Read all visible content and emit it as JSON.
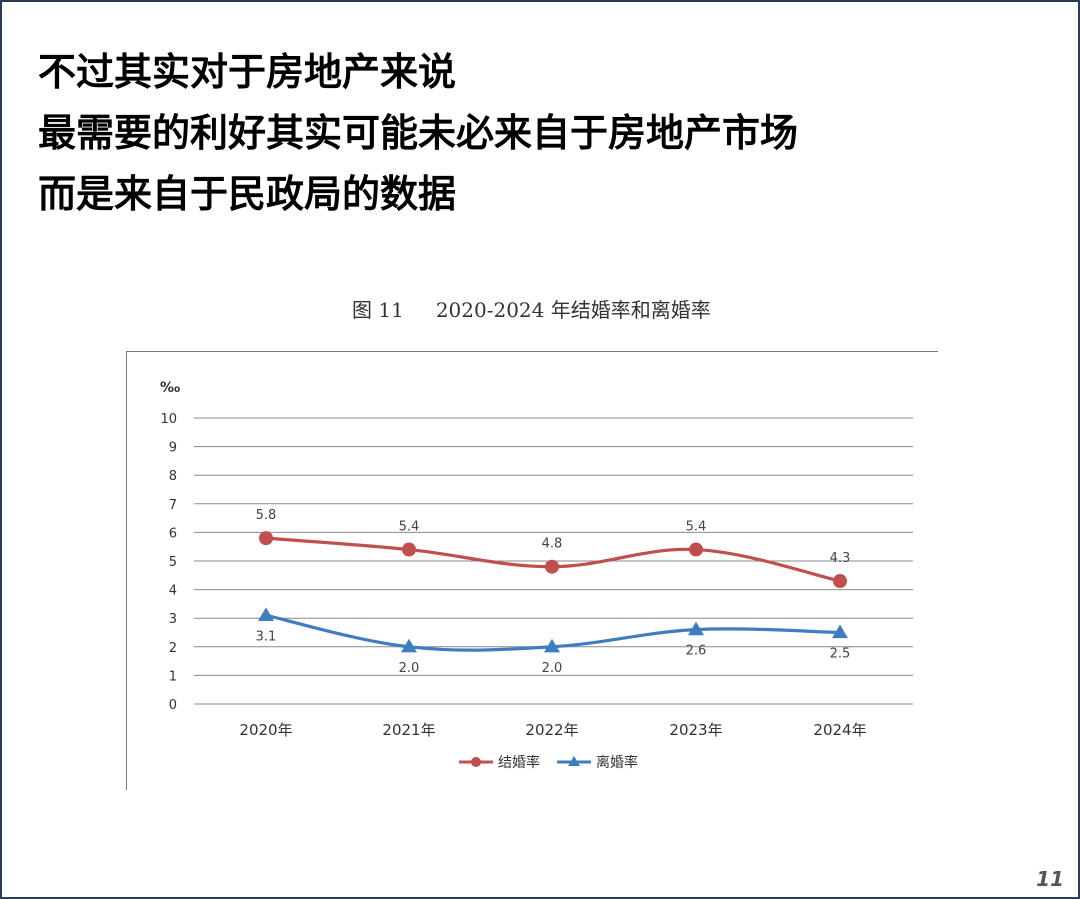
{
  "headline": [
    "不过其实对于房地产来说",
    "最需要的利好其实可能未必来自于房地产市场",
    "而是来自于民政局的数据"
  ],
  "page_number": "11",
  "chart_data": {
    "type": "line",
    "figure_label": "图 11",
    "title": "2020-2024 年结婚率和离婚率",
    "ylabel": "‰",
    "xlabel": "",
    "categories": [
      "2020年",
      "2021年",
      "2022年",
      "2023年",
      "2024年"
    ],
    "ylim": [
      0,
      10
    ],
    "yticks": [
      0,
      1,
      2,
      3,
      4,
      5,
      6,
      7,
      8,
      9,
      10
    ],
    "grid": true,
    "legend_position": "bottom",
    "series": [
      {
        "name": "结婚率",
        "values": [
          5.8,
          5.4,
          4.8,
          5.4,
          4.3
        ],
        "color": "#c0504d",
        "marker": "circle",
        "label_position": "above"
      },
      {
        "name": "离婚率",
        "values": [
          3.1,
          2.0,
          2.0,
          2.6,
          2.5
        ],
        "color": "#3f7dc1",
        "marker": "triangle",
        "label_position": "below"
      }
    ]
  }
}
